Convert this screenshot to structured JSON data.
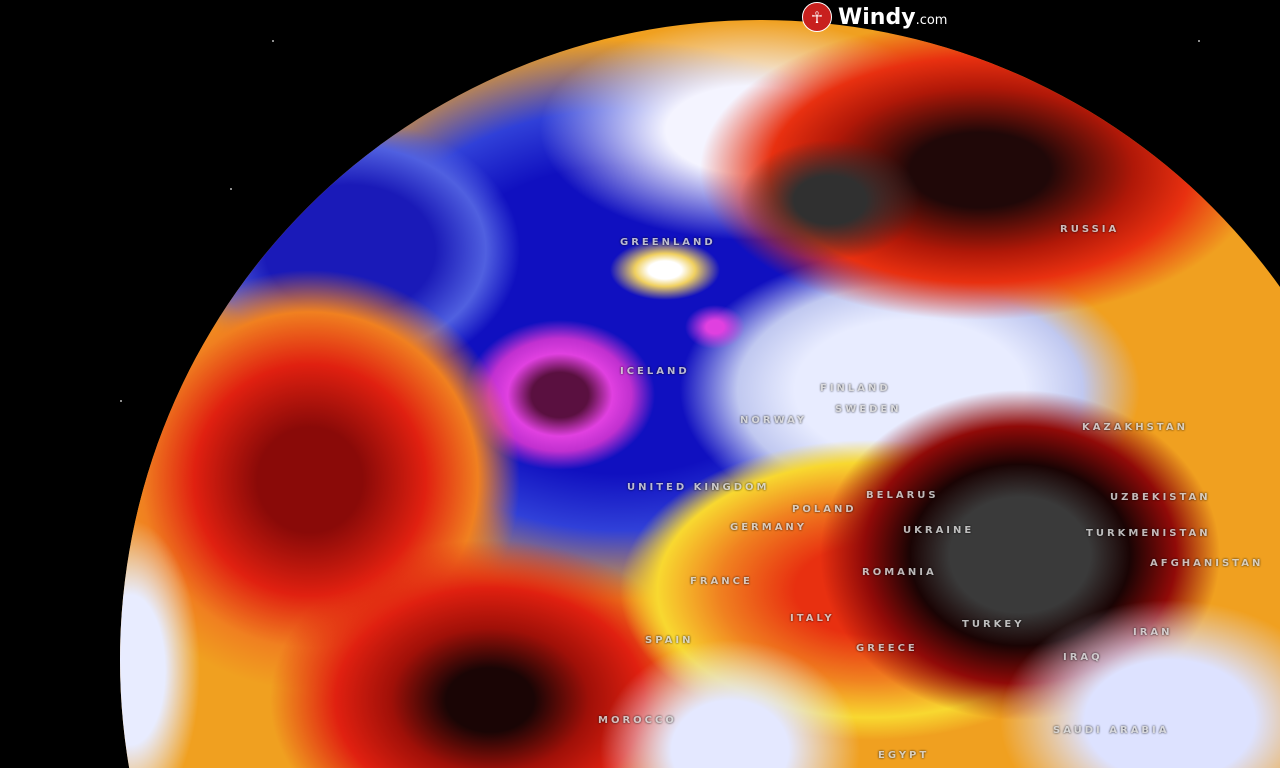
{
  "brand": {
    "name": "Windy",
    "tld": ".com",
    "icon": "windy-logo-icon",
    "color": "#c8201e"
  },
  "map": {
    "type": "globe-temperature-anomaly",
    "colors": {
      "cold": "#1a1acc",
      "very_cold": "#e040e0",
      "neutral": "#e8ecff",
      "warm": "#f5d020",
      "hot": "#e02010",
      "very_hot": "#3a3a3a"
    },
    "labels": [
      {
        "name": "GREENLAND"
      },
      {
        "name": "RUSSIA"
      },
      {
        "name": "ICELAND"
      },
      {
        "name": "FINLAND"
      },
      {
        "name": "NORWAY"
      },
      {
        "name": "SWEDEN"
      },
      {
        "name": "UNITED KINGDOM"
      },
      {
        "name": "BELARUS"
      },
      {
        "name": "POLAND"
      },
      {
        "name": "GERMANY"
      },
      {
        "name": "UKRAINE"
      },
      {
        "name": "KAZAKHSTAN"
      },
      {
        "name": "UZBEKISTAN"
      },
      {
        "name": "TURKMENISTAN"
      },
      {
        "name": "AFGHANISTAN"
      },
      {
        "name": "ROMANIA"
      },
      {
        "name": "FRANCE"
      },
      {
        "name": "SPAIN"
      },
      {
        "name": "ITALY"
      },
      {
        "name": "GREECE"
      },
      {
        "name": "TURKEY"
      },
      {
        "name": "IRAN"
      },
      {
        "name": "IRAQ"
      },
      {
        "name": "MOROCCO"
      },
      {
        "name": "SAUDI ARABIA"
      },
      {
        "name": "EGYPT"
      }
    ]
  }
}
